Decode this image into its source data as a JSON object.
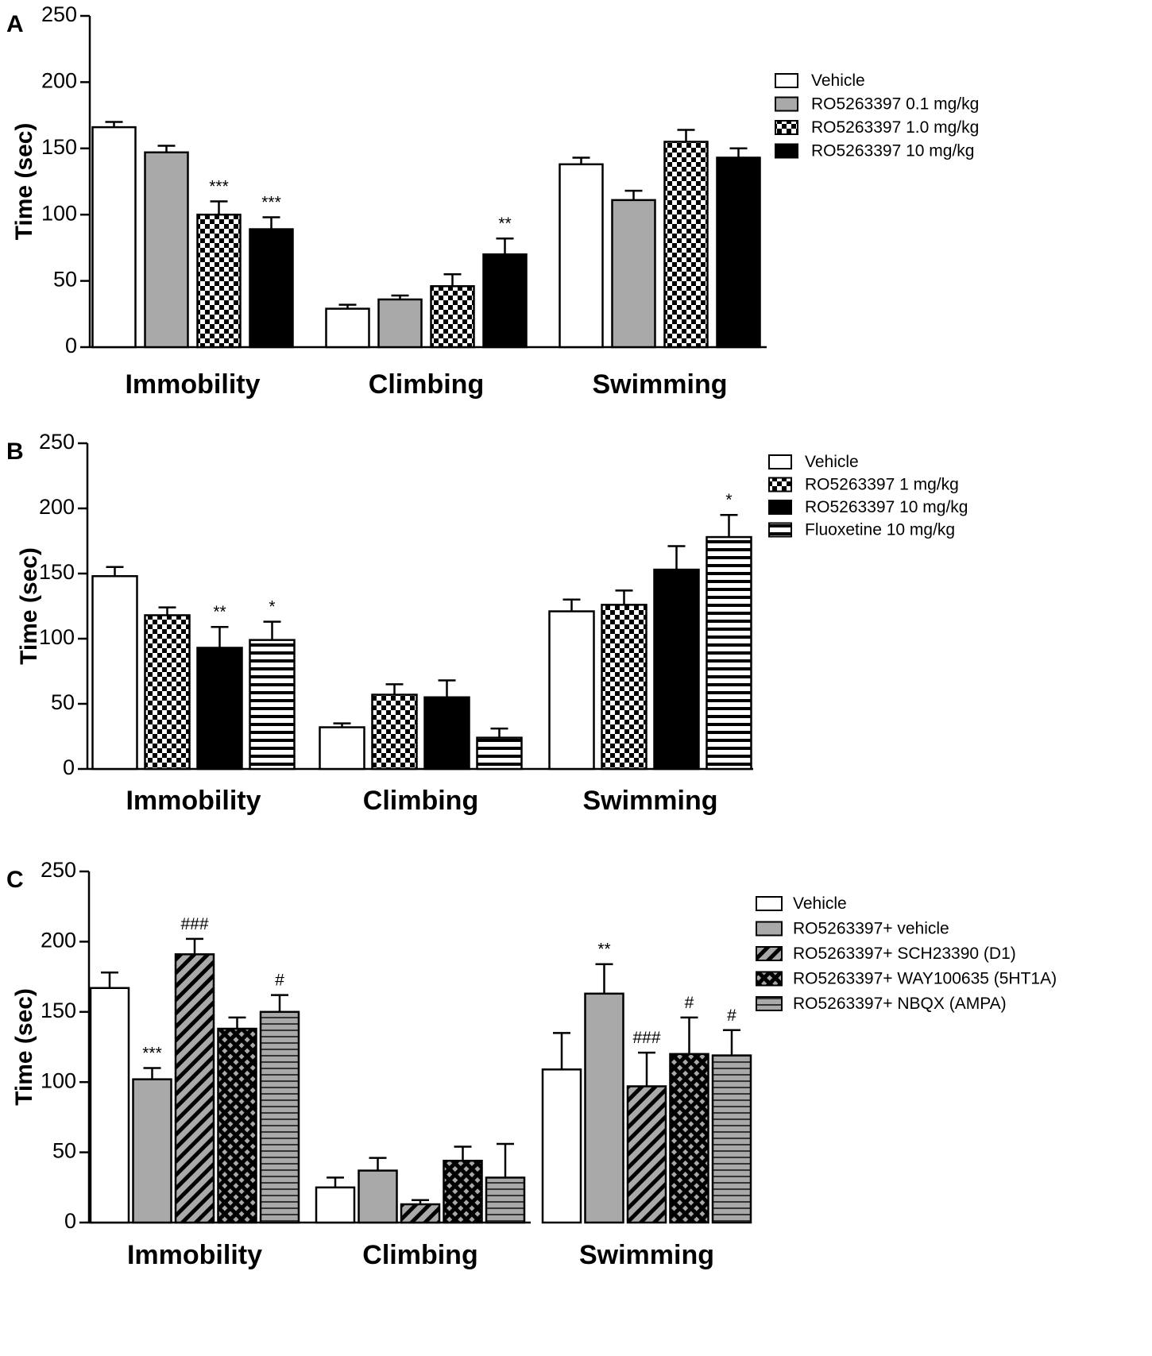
{
  "figure": {
    "panels": [
      "A",
      "B",
      "C"
    ]
  },
  "chart_data": [
    {
      "panel": "A",
      "type": "bar",
      "title": "",
      "xlabel": "",
      "ylabel": "Time (sec)",
      "ylim": [
        0,
        250
      ],
      "yticks": [
        0,
        50,
        100,
        150,
        200,
        250
      ],
      "categories": [
        "Immobility",
        "Climbing",
        "Swimming"
      ],
      "legend_position": "top-right",
      "series": [
        {
          "name": "Vehicle",
          "pattern": "white",
          "values": [
            166,
            29,
            138
          ],
          "errors": [
            4,
            3,
            5
          ],
          "annotations": [
            "",
            "",
            ""
          ]
        },
        {
          "name": "RO5263397 0.1 mg/kg",
          "pattern": "gray",
          "values": [
            147,
            36,
            111
          ],
          "errors": [
            5,
            3,
            7
          ],
          "annotations": [
            "",
            "",
            ""
          ]
        },
        {
          "name": "RO5263397 1.0 mg/kg",
          "pattern": "checker",
          "values": [
            100,
            46,
            155
          ],
          "errors": [
            10,
            9,
            9
          ],
          "annotations": [
            "***",
            "",
            ""
          ]
        },
        {
          "name": "RO5263397 10 mg/kg",
          "pattern": "black",
          "values": [
            89,
            70,
            143
          ],
          "errors": [
            9,
            12,
            7
          ],
          "annotations": [
            "***",
            "**",
            ""
          ]
        }
      ]
    },
    {
      "panel": "B",
      "type": "bar",
      "title": "",
      "xlabel": "",
      "ylabel": "Time (sec)",
      "ylim": [
        0,
        250
      ],
      "yticks": [
        0,
        50,
        100,
        150,
        200,
        250
      ],
      "categories": [
        "Immobility",
        "Climbing",
        "Swimming"
      ],
      "legend_position": "top-right",
      "series": [
        {
          "name": "Vehicle",
          "pattern": "white",
          "values": [
            148,
            32,
            121
          ],
          "errors": [
            7,
            3,
            9
          ],
          "annotations": [
            "",
            "",
            ""
          ]
        },
        {
          "name": "RO5263397 1 mg/kg",
          "pattern": "checker",
          "values": [
            118,
            57,
            126
          ],
          "errors": [
            6,
            8,
            11
          ],
          "annotations": [
            "",
            "",
            ""
          ]
        },
        {
          "name": "RO5263397 10 mg/kg",
          "pattern": "black",
          "values": [
            93,
            55,
            153
          ],
          "errors": [
            16,
            13,
            18
          ],
          "annotations": [
            "**",
            "",
            ""
          ]
        },
        {
          "name": "Fluoxetine 10 mg/kg",
          "pattern": "hstripe",
          "values": [
            99,
            24,
            178
          ],
          "errors": [
            14,
            7,
            17
          ],
          "annotations": [
            "*",
            "",
            "*"
          ]
        }
      ]
    },
    {
      "panel": "C",
      "type": "bar",
      "title": "",
      "xlabel": "",
      "ylabel": "Time (sec)",
      "ylim": [
        0,
        250
      ],
      "yticks": [
        0,
        50,
        100,
        150,
        200,
        250
      ],
      "categories": [
        "Immobility",
        "Climbing",
        "Swimming"
      ],
      "legend_position": "top-right",
      "series": [
        {
          "name": "Vehicle",
          "pattern": "white",
          "values": [
            167,
            25,
            109
          ],
          "errors": [
            11,
            7,
            26
          ],
          "annotations": [
            "",
            "",
            ""
          ]
        },
        {
          "name": "RO5263397+ vehicle",
          "pattern": "gray",
          "values": [
            102,
            37,
            163
          ],
          "errors": [
            8,
            9,
            21
          ],
          "annotations": [
            "***",
            "",
            "**"
          ]
        },
        {
          "name": "RO5263397+ SCH23390 (D1)",
          "pattern": "diag",
          "values": [
            191,
            13,
            97
          ],
          "errors": [
            11,
            3,
            24
          ],
          "annotations": [
            "###",
            "",
            "###"
          ]
        },
        {
          "name": "RO5263397+ WAY100635 (5HT1A)",
          "pattern": "crosshatch",
          "values": [
            138,
            44,
            120
          ],
          "errors": [
            8,
            10,
            26
          ],
          "annotations": [
            "",
            "",
            "#"
          ]
        },
        {
          "name": "RO5263397+ NBQX (AMPA)",
          "pattern": "grayhstripe",
          "values": [
            150,
            32,
            119
          ],
          "errors": [
            12,
            24,
            18
          ],
          "annotations": [
            "#",
            "",
            "#"
          ]
        }
      ]
    }
  ]
}
